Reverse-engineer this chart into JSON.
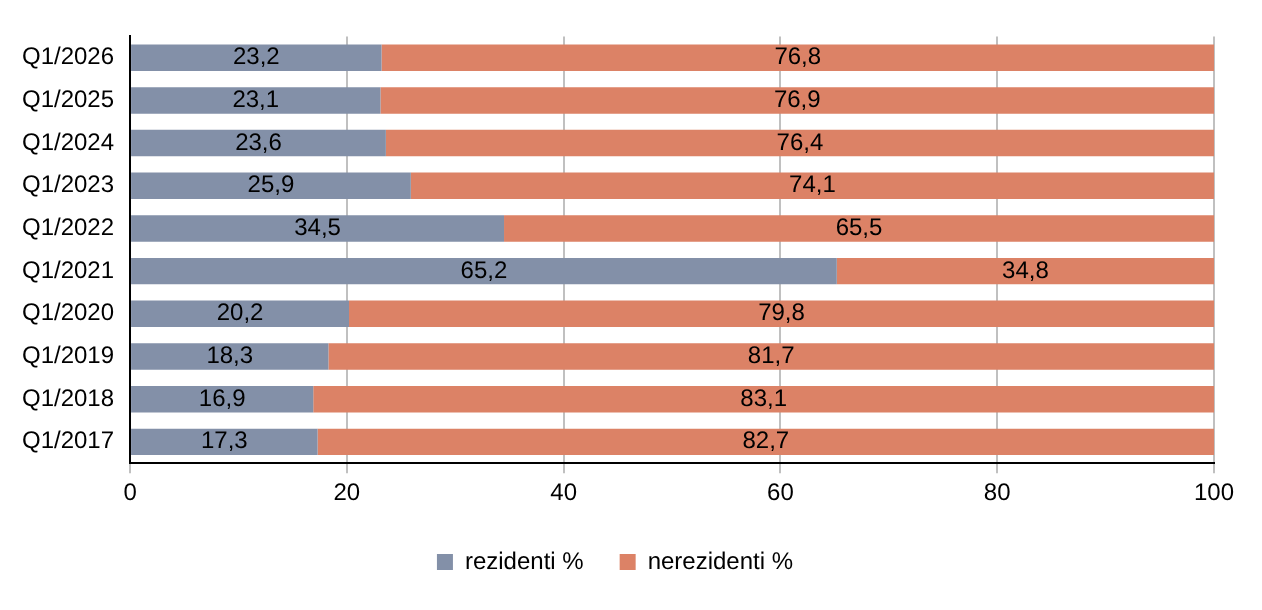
{
  "chart_data": {
    "type": "bar",
    "orientation": "horizontal",
    "stacked": true,
    "categories": [
      "Q1/2026",
      "Q1/2025",
      "Q1/2024",
      "Q1/2023",
      "Q1/2022",
      "Q1/2021",
      "Q1/2020",
      "Q1/2019",
      "Q1/2018",
      "Q1/2017"
    ],
    "series": [
      {
        "name": "rezidenti %",
        "color": "#8390a8",
        "values": [
          23.2,
          23.1,
          23.6,
          25.9,
          34.5,
          65.2,
          20.2,
          18.3,
          16.9,
          17.3
        ],
        "value_labels": [
          "23,2",
          "23,1",
          "23,6",
          "25,9",
          "34,5",
          "65,2",
          "20,2",
          "18,3",
          "16,9",
          "17,3"
        ]
      },
      {
        "name": "nerezidenti %",
        "color": "#dc8266",
        "values": [
          76.8,
          76.9,
          76.4,
          74.1,
          65.5,
          34.8,
          79.8,
          81.7,
          83.1,
          82.7
        ],
        "value_labels": [
          "76,8",
          "76,9",
          "76,4",
          "74,1",
          "65,5",
          "34,8",
          "79,8",
          "81,7",
          "83,1",
          "82,7"
        ]
      }
    ],
    "xlim": [
      0,
      100
    ],
    "xticks": [
      0,
      20,
      40,
      60,
      80,
      100
    ],
    "grid": "x",
    "legend": "bottom"
  }
}
